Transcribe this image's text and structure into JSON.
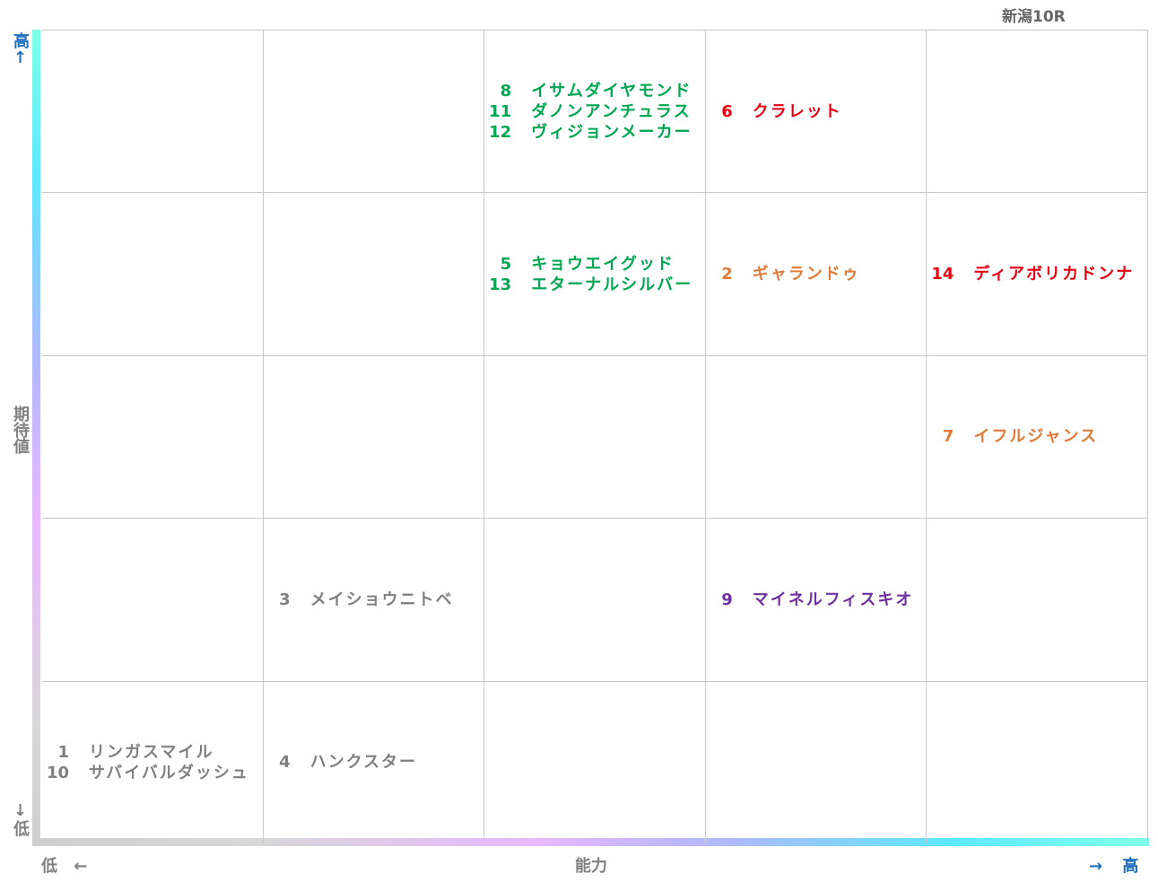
{
  "title": "新潟10R",
  "y_axis": {
    "high": "高↑",
    "label": "期待値",
    "low": "↓低"
  },
  "x_axis": {
    "low": "低 ←",
    "label": "能力",
    "high": "→ 高"
  },
  "rows": [
    [
      [],
      [],
      [
        {
          "number": 8,
          "name": "イサムダイヤモンド",
          "color": "#00a651"
        },
        {
          "number": 11,
          "name": "ダノンアンチュラス",
          "color": "#00a651"
        },
        {
          "number": 12,
          "name": "ヴィジョンメーカー",
          "color": "#00a651"
        }
      ],
      [
        {
          "number": 6,
          "name": "クラレット",
          "color": "#e60012"
        }
      ],
      []
    ],
    [
      [],
      [],
      [
        {
          "number": 5,
          "name": "キョウエイグッド",
          "color": "#00a651"
        },
        {
          "number": 13,
          "name": "エターナルシルバー",
          "color": "#00a651"
        }
      ],
      [
        {
          "number": 2,
          "name": "ギャランドゥ",
          "color": "#e07b39"
        }
      ],
      [
        {
          "number": 14,
          "name": "ディアボリカドンナ",
          "color": "#e60012"
        }
      ]
    ],
    [
      [],
      [],
      [],
      [],
      [
        {
          "number": 7,
          "name": "イフルジャンス",
          "color": "#e07b39"
        }
      ]
    ],
    [
      [],
      [
        {
          "number": 3,
          "name": "メイショウニトベ",
          "color": "#808080"
        }
      ],
      [],
      [
        {
          "number": 9,
          "name": "マイネルフィスキオ",
          "color": "#7030a0"
        }
      ],
      []
    ],
    [
      [
        {
          "number": 1,
          "name": "リンガスマイル",
          "color": "#808080"
        },
        {
          "number": 10,
          "name": "サバイバルダッシュ",
          "color": "#808080"
        }
      ],
      [
        {
          "number": 4,
          "name": "ハンクスター",
          "color": "#808080"
        }
      ],
      [],
      [],
      []
    ]
  ]
}
